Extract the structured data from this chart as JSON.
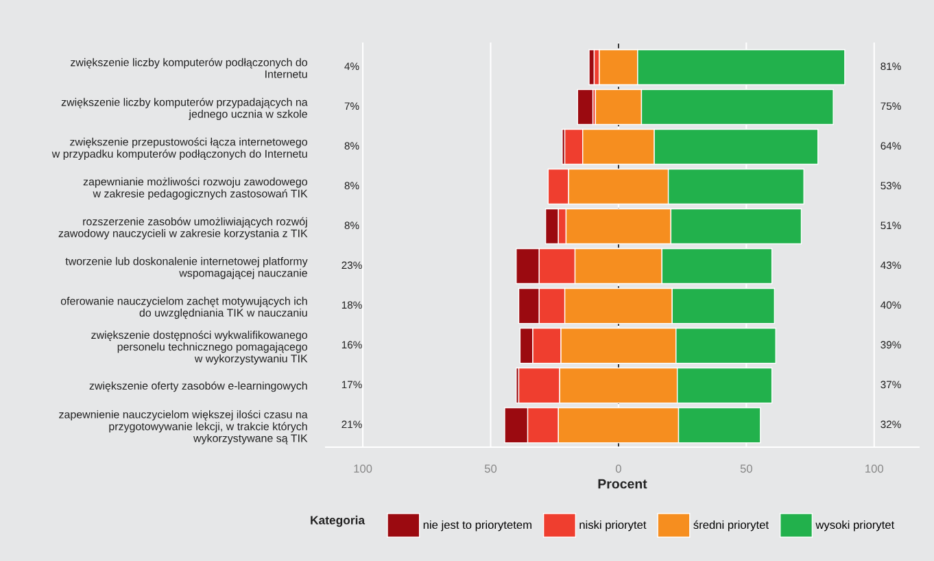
{
  "chart_data": {
    "type": "bar",
    "orientation": "horizontal",
    "categories": [
      "zwiększenie liczby komputerów podłączonych do\nInternetu",
      "zwiększenie liczby komputerów przypadających na\njednego ucznia w szkole",
      "zwiększenie przepustowości łącza internetowego\nw przypadku komputerów podłączonych do Internetu",
      "zapewnianie możliwości rozwoju zawodowego\nw zakresie pedagogicznych zastosowań TIK",
      "rozszerzenie zasobów umożliwiających rozwój\nzawodowy nauczycieli w zakresie korzystania z TIK",
      "tworzenie lub doskonalenie internetowej platformy\nwspomagającej nauczanie",
      "oferowanie nauczycielom zachęt motywujących ich\ndo uwzględniania TIK w nauczaniu",
      "zwiększenie dostępności wykwalifikowanego\npersonelu technicznego pomagającego\nw wykorzystywaniu TIK",
      "zwiększenie oferty zasobów e-learningowych",
      "zapewnienie nauczycielom większej ilości czasu na\nprzygotowywanie lekcji, w trakcie których\nwykorzystywane są TIK"
    ],
    "series": [
      {
        "name": "nie jest to priorytetem",
        "color": "#9b0a10",
        "base": [
          -11.5,
          -16,
          -22,
          null,
          -28.5,
          -40,
          -39,
          -38.5,
          -40,
          -44.5
        ],
        "values": [
          2,
          6,
          1,
          null,
          5,
          9,
          8,
          5,
          1,
          9
        ]
      },
      {
        "name": "niski priorytet",
        "color": "#ef3e2f",
        "base": [
          -9.5,
          -10,
          -21,
          -27.5,
          -23.5,
          -31,
          -31,
          -33.5,
          -39,
          -35.5
        ],
        "values": [
          2,
          1,
          7,
          8,
          3,
          14,
          10,
          11,
          16,
          12
        ]
      },
      {
        "name": "średni priorytet",
        "color": "#f68e1f",
        "base": [
          -7.5,
          -9,
          -14,
          -19.5,
          -20.5,
          -17,
          -21,
          -22.5,
          -23,
          -23.5
        ],
        "values": [
          15,
          18,
          28,
          39,
          41,
          34,
          42,
          45,
          46,
          47
        ]
      },
      {
        "name": "wysoki priorytet",
        "color": "#22b14c",
        "base": [
          7.5,
          9,
          14,
          19.5,
          20.5,
          17,
          21,
          22.5,
          23,
          23.5
        ],
        "values": [
          81,
          75,
          64,
          53,
          51,
          43,
          40,
          39,
          37,
          32
        ]
      }
    ],
    "xlabel": "Procent",
    "legend_title": "Kategoria",
    "legend": "bottom",
    "grid": "x",
    "xlim": [
      -114.5,
      117.5
    ],
    "xticks": [
      {
        "value": -100,
        "label": "100"
      },
      {
        "value": -50,
        "label": "50"
      },
      0,
      50,
      100
    ],
    "ref_lines": [
      {
        "axis": "x",
        "value": 0,
        "color": "#222222",
        "line_style": "dashed"
      }
    ],
    "annotations": [
      "4%",
      "7%",
      "8%",
      "8%",
      "8%",
      "23%",
      "18%",
      "16%",
      "17%",
      "21%",
      "81%",
      "75%",
      "64%",
      "53%",
      "51%",
      "43%",
      "40%",
      "39%",
      "37%",
      "32%"
    ]
  }
}
